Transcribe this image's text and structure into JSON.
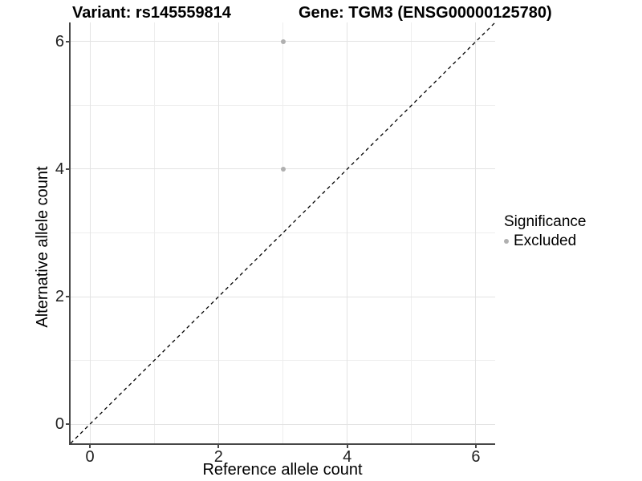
{
  "titles": {
    "left": "Variant: rs145559814",
    "right": "Gene: TGM3 (ENSG00000125780)"
  },
  "legend": {
    "title": "Significance",
    "position": "right",
    "items": [
      {
        "label": "Excluded",
        "color": "#b0b0b0",
        "marker": "circle"
      }
    ]
  },
  "colors": {
    "background": "#ffffff",
    "grid_major": "#e3e3e3",
    "grid_minor": "#eeeeee",
    "axis_line": "#474747",
    "tick_text": "#1f1f1f",
    "point_excluded": "#b0b0b0",
    "reference_line": "#000000"
  },
  "chart_data": {
    "type": "scatter",
    "title": "Variant: rs145559814 | Gene: TGM3 (ENSG00000125780)",
    "xlabel": "Reference allele count",
    "ylabel": "Alternative allele count",
    "xlim": [
      -0.3,
      6.3
    ],
    "ylim": [
      -0.3,
      6.3
    ],
    "x_ticks": [
      0,
      2,
      4,
      6
    ],
    "y_ticks": [
      0,
      2,
      4,
      6
    ],
    "x_minor_ticks": [
      1,
      3,
      5
    ],
    "y_minor_ticks": [
      1,
      3,
      5
    ],
    "grid": true,
    "legend_position": "right",
    "series": [
      {
        "name": "Excluded",
        "color": "#b0b0b0",
        "marker": "circle",
        "points": [
          {
            "x": 3,
            "y": 6
          },
          {
            "x": 3,
            "y": 4
          }
        ]
      }
    ],
    "reference_line": {
      "kind": "identity y=x",
      "style": "dashed",
      "color": "#000000",
      "width": 1.3
    }
  }
}
